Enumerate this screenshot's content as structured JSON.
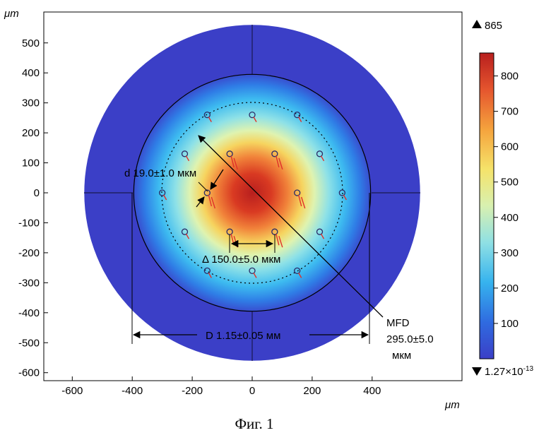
{
  "figure": {
    "caption": "Фиг. 1"
  },
  "chart_data": {
    "type": "heatmap",
    "title": "",
    "x_unit_label": "μm",
    "y_unit_label": "μm",
    "xlim": [
      -690,
      690
    ],
    "ylim": [
      -610,
      610
    ],
    "x_ticks": [
      -600,
      -400,
      -200,
      0,
      200,
      400
    ],
    "y_ticks": [
      500,
      400,
      300,
      200,
      100,
      0,
      -100,
      -200,
      -300,
      -400,
      -500,
      -600
    ],
    "grid": false,
    "colorbar": {
      "max_label": "865",
      "min_label": "1.27×10",
      "min_exponent": "-13",
      "max_value": 865,
      "min_value": 1.27e-13,
      "ticks": [
        800,
        700,
        600,
        500,
        400,
        300,
        200,
        100
      ],
      "colormap": [
        "#3b3fc7",
        "#2f6be0",
        "#36b3ee",
        "#8fe0e4",
        "#d8f0b0",
        "#f5e36a",
        "#f5a33d",
        "#e5552e",
        "#b81f1e"
      ]
    },
    "geometry": {
      "outer_radius": 560,
      "inner_radius": 395,
      "ring_pitch_radius": 300,
      "hole_diameter": 19.0,
      "hole_pitch": 150.0,
      "holes": [
        {
          "x": -150,
          "y": 260
        },
        {
          "x": 0,
          "y": 260
        },
        {
          "x": 150,
          "y": 260
        },
        {
          "x": -225,
          "y": 130
        },
        {
          "x": -75,
          "y": 130
        },
        {
          "x": 75,
          "y": 130
        },
        {
          "x": 225,
          "y": 130
        },
        {
          "x": -300,
          "y": 0
        },
        {
          "x": -150,
          "y": 0
        },
        {
          "x": 150,
          "y": 0
        },
        {
          "x": 300,
          "y": 0
        },
        {
          "x": -225,
          "y": -130
        },
        {
          "x": -75,
          "y": -130
        },
        {
          "x": 75,
          "y": -130
        },
        {
          "x": 225,
          "y": -130
        },
        {
          "x": -150,
          "y": -260
        },
        {
          "x": 0,
          "y": -260
        },
        {
          "x": 150,
          "y": -260
        }
      ],
      "peak_intensity_center": [
        0,
        0
      ]
    },
    "annotations": {
      "hole": "d 19.0±1.0 мкм",
      "pitch": "Δ 150.0±5.0 мкм",
      "diameter": "D 1.15±0.05 мм",
      "mfd_line1": "MFD",
      "mfd_line2": "295.0±5.0",
      "mfd_line3": "мкм"
    }
  }
}
